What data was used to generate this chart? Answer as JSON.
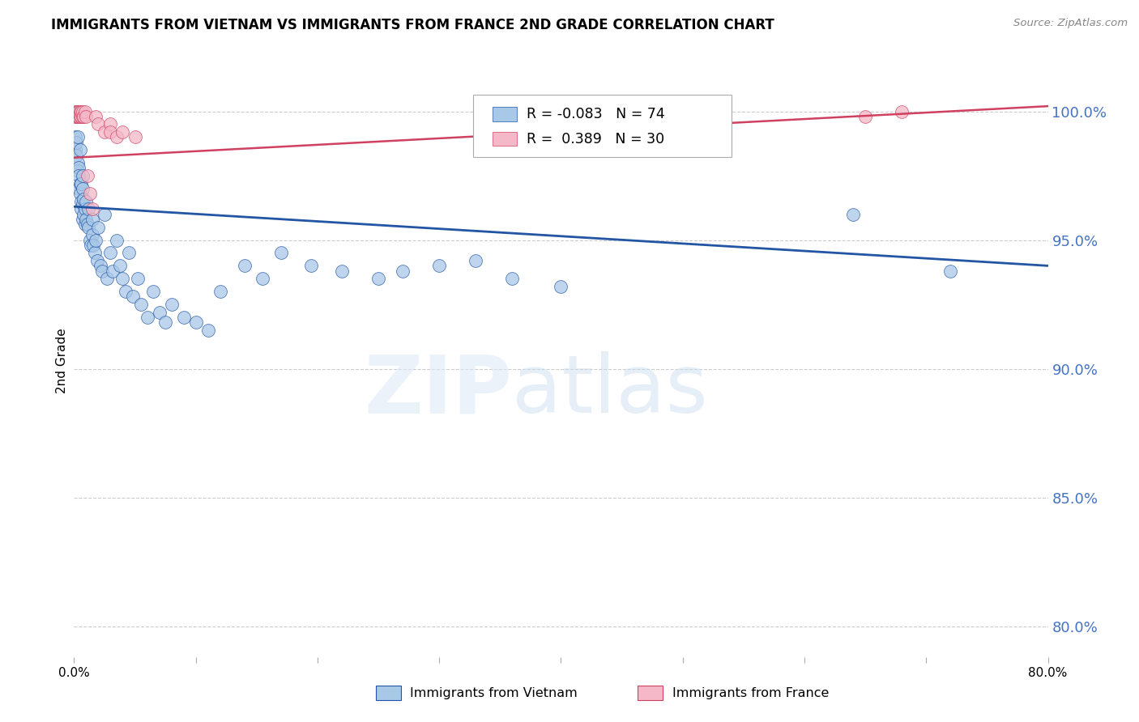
{
  "title": "IMMIGRANTS FROM VIETNAM VS IMMIGRANTS FROM FRANCE 2ND GRADE CORRELATION CHART",
  "source": "Source: ZipAtlas.com",
  "ylabel": "2nd Grade",
  "watermark": "ZIPatlas",
  "blue_R": -0.083,
  "blue_N": 74,
  "pink_R": 0.389,
  "pink_N": 30,
  "blue_color": "#a8c8e8",
  "pink_color": "#f4b8c8",
  "blue_line_color": "#2255a4",
  "pink_line_color": "#d04060",
  "right_axis_color": "#4472c4",
  "ytick_labels": [
    "100.0%",
    "95.0%",
    "90.0%",
    "85.0%",
    "80.0%"
  ],
  "ytick_values": [
    1.0,
    0.95,
    0.9,
    0.85,
    0.8
  ],
  "xlim": [
    0.0,
    0.8
  ],
  "ylim": [
    0.788,
    1.018
  ],
  "blue_line_x0": 0.0,
  "blue_line_y0": 0.963,
  "blue_line_x1": 0.8,
  "blue_line_y1": 0.94,
  "pink_line_x0": 0.0,
  "pink_line_y0": 0.982,
  "pink_line_x1": 0.8,
  "pink_line_y1": 1.002,
  "blue_scatter_x": [
    0.001,
    0.001,
    0.002,
    0.002,
    0.003,
    0.003,
    0.003,
    0.004,
    0.004,
    0.004,
    0.005,
    0.005,
    0.005,
    0.006,
    0.006,
    0.006,
    0.007,
    0.007,
    0.007,
    0.007,
    0.008,
    0.008,
    0.009,
    0.009,
    0.01,
    0.01,
    0.011,
    0.012,
    0.012,
    0.013,
    0.014,
    0.015,
    0.015,
    0.016,
    0.017,
    0.018,
    0.019,
    0.02,
    0.022,
    0.023,
    0.025,
    0.027,
    0.03,
    0.032,
    0.035,
    0.038,
    0.04,
    0.042,
    0.045,
    0.048,
    0.052,
    0.055,
    0.06,
    0.065,
    0.07,
    0.075,
    0.08,
    0.09,
    0.1,
    0.11,
    0.12,
    0.14,
    0.155,
    0.17,
    0.195,
    0.22,
    0.25,
    0.27,
    0.3,
    0.33,
    0.36,
    0.4,
    0.64,
    0.72
  ],
  "blue_scatter_y": [
    0.99,
    0.985,
    0.988,
    0.983,
    0.98,
    0.977,
    0.99,
    0.978,
    0.975,
    0.97,
    0.972,
    0.968,
    0.985,
    0.965,
    0.962,
    0.972,
    0.958,
    0.964,
    0.97,
    0.975,
    0.96,
    0.966,
    0.956,
    0.962,
    0.958,
    0.965,
    0.956,
    0.955,
    0.962,
    0.95,
    0.948,
    0.952,
    0.958,
    0.948,
    0.945,
    0.95,
    0.942,
    0.955,
    0.94,
    0.938,
    0.96,
    0.935,
    0.945,
    0.938,
    0.95,
    0.94,
    0.935,
    0.93,
    0.945,
    0.928,
    0.935,
    0.925,
    0.92,
    0.93,
    0.922,
    0.918,
    0.925,
    0.92,
    0.918,
    0.915,
    0.93,
    0.94,
    0.935,
    0.945,
    0.94,
    0.938,
    0.935,
    0.938,
    0.94,
    0.942,
    0.935,
    0.932,
    0.96,
    0.938
  ],
  "pink_scatter_x": [
    0.001,
    0.001,
    0.002,
    0.002,
    0.003,
    0.003,
    0.004,
    0.004,
    0.005,
    0.005,
    0.006,
    0.006,
    0.007,
    0.007,
    0.008,
    0.009,
    0.01,
    0.011,
    0.013,
    0.015,
    0.018,
    0.02,
    0.025,
    0.03,
    0.03,
    0.035,
    0.04,
    0.05,
    0.65,
    0.68
  ],
  "pink_scatter_y": [
    1.0,
    0.998,
    1.0,
    0.998,
    1.0,
    0.998,
    1.0,
    0.998,
    1.0,
    0.998,
    0.998,
    1.0,
    0.998,
    1.0,
    0.998,
    1.0,
    0.998,
    0.975,
    0.968,
    0.962,
    0.998,
    0.995,
    0.992,
    0.995,
    0.992,
    0.99,
    0.992,
    0.99,
    0.998,
    1.0
  ]
}
